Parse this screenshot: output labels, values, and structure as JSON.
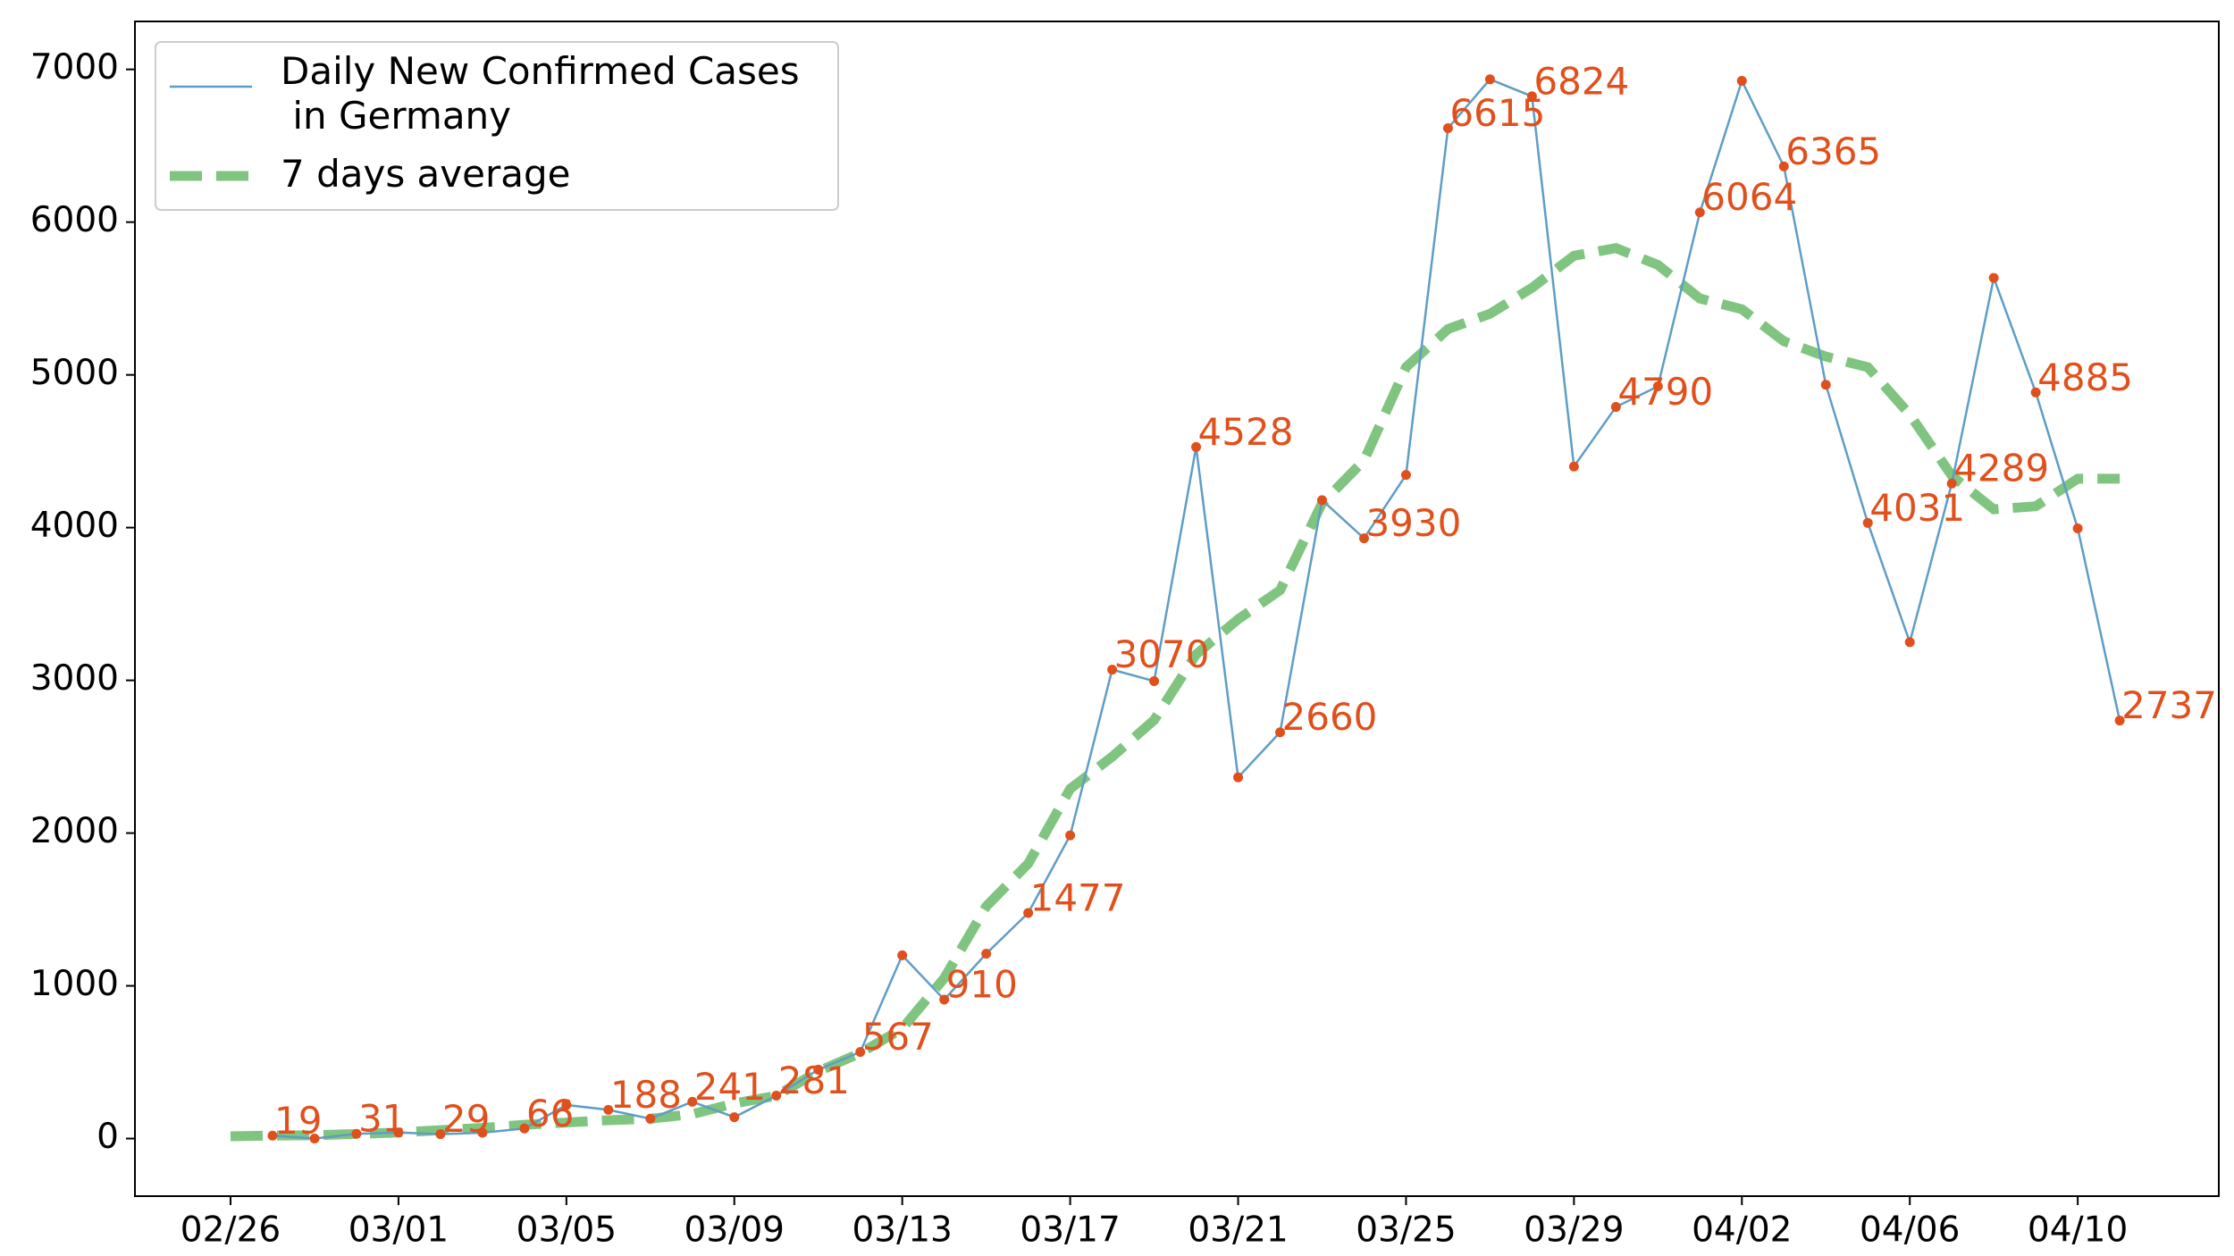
{
  "chart_data": {
    "type": "line",
    "categories": [
      "02/26",
      null,
      null,
      null,
      "03/01",
      null,
      null,
      null,
      "03/05",
      null,
      null,
      null,
      "03/09",
      null,
      null,
      null,
      "03/13",
      null,
      null,
      null,
      "03/17",
      null,
      null,
      null,
      "03/21",
      null,
      null,
      null,
      "03/25",
      null,
      null,
      null,
      "03/29",
      null,
      null,
      null,
      "04/02",
      null,
      null,
      null,
      "04/06",
      null,
      null,
      null,
      "04/10",
      null
    ],
    "series": [
      {
        "name": "Daily New Confirmed Cases\n in Germany",
        "color": "#5f9dc6",
        "style": "solid",
        "markers": true,
        "marker_color": "#e0501c",
        "values": [
          null,
          19,
          0,
          31,
          40,
          29,
          38,
          66,
          220,
          188,
          130,
          241,
          140,
          281,
          451,
          567,
          1200,
          910,
          1210,
          1477,
          1985,
          3070,
          2995,
          4528,
          2365,
          2660,
          4180,
          3930,
          4345,
          6615,
          6935,
          6824,
          4400,
          4790,
          4925,
          6064,
          6925,
          6365,
          4935,
          4031,
          3250,
          4289,
          5635,
          4885,
          3995,
          2737
        ],
        "value_labels": [
          null,
          "19",
          null,
          "31",
          null,
          "29",
          null,
          "66",
          null,
          "188",
          null,
          "241",
          null,
          "281",
          null,
          "567",
          null,
          "910",
          null,
          "1477",
          null,
          "3070",
          null,
          "4528",
          null,
          "2660",
          null,
          "3930",
          null,
          "6615",
          null,
          "6824",
          null,
          "4790",
          null,
          "6064",
          null,
          "6365",
          null,
          "4031",
          null,
          "4289",
          null,
          "4885",
          null,
          "2737"
        ]
      },
      {
        "name": "7 days average",
        "color": "#7fc47f",
        "style": "dashed",
        "markers": false,
        "values": [
          15,
          20,
          22,
          30,
          40,
          55,
          70,
          90,
          105,
          120,
          130,
          160,
          230,
          280,
          440,
          560,
          720,
          1050,
          1520,
          1800,
          2290,
          2500,
          2740,
          3170,
          3400,
          3590,
          4160,
          4440,
          5050,
          5300,
          5400,
          5570,
          5780,
          5830,
          5720,
          5500,
          5430,
          5220,
          5120,
          5050,
          4740,
          4340,
          4120,
          4140,
          4320,
          4320
        ]
      }
    ],
    "label_color": "#e0501c",
    "ylim": [
      -377,
      7314
    ],
    "yticks": [
      0,
      1000,
      2000,
      3000,
      4000,
      5000,
      6000,
      7000
    ],
    "legend": "upper left",
    "grid": false
  }
}
